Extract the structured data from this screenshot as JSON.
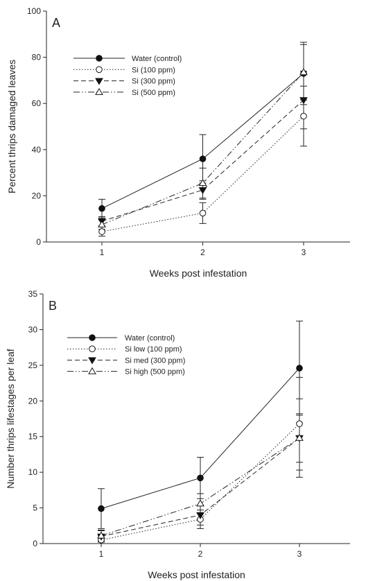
{
  "chart_data": [
    {
      "type": "line",
      "panel_label": "A",
      "xlabel": "Weeks post infestation",
      "ylabel": "Percent thrips damaged leaves",
      "x": [
        1,
        2,
        3
      ],
      "xticks": [
        1,
        2,
        3
      ],
      "ylim": [
        0,
        100
      ],
      "yticks": [
        0,
        20,
        40,
        60,
        80,
        100
      ],
      "legend_position": "top-left",
      "series": [
        {
          "name": "Water (control)",
          "values": [
            14.5,
            36,
            73
          ],
          "errors": [
            4,
            10.5,
            13.5
          ],
          "marker": "filled-circle",
          "dash": "solid"
        },
        {
          "name": "Si (100 ppm)",
          "values": [
            4.5,
            12.5,
            54.5
          ],
          "errors": [
            2,
            4.5,
            13
          ],
          "marker": "open-circle",
          "dash": "dotted"
        },
        {
          "name": "Si (300 ppm)",
          "values": [
            9,
            22.5,
            61.5
          ],
          "errors": [
            2,
            4,
            12.5
          ],
          "marker": "filled-triangle-down",
          "dash": "dashed"
        },
        {
          "name": "Si (500 ppm)",
          "values": [
            7.5,
            25.5,
            73.5
          ],
          "errors": [
            2,
            6.5,
            12
          ],
          "marker": "open-triangle-up",
          "dash": "dash-dot-dot"
        }
      ]
    },
    {
      "type": "line",
      "panel_label": "B",
      "xlabel": "Weeks post infestation",
      "ylabel": "Number thrips lifestages per leaf",
      "x": [
        1,
        2,
        3
      ],
      "xticks": [
        1,
        2,
        3
      ],
      "ylim": [
        0,
        35
      ],
      "yticks": [
        0,
        5,
        10,
        15,
        20,
        25,
        30,
        35
      ],
      "legend_position": "top-left",
      "series": [
        {
          "name": "Water (control)",
          "values": [
            4.9,
            9.2,
            24.6
          ],
          "errors": [
            2.8,
            2.9,
            6.6
          ],
          "marker": "filled-circle",
          "dash": "solid"
        },
        {
          "name": "Si low (100 ppm)",
          "values": [
            0.5,
            3.4,
            16.8
          ],
          "errors": [
            0.6,
            1.3,
            6.5
          ],
          "marker": "open-circle",
          "dash": "dotted"
        },
        {
          "name": "Si med (300 ppm)",
          "values": [
            1,
            4,
            14.8
          ],
          "errors": [
            0.8,
            1.4,
            3.4
          ],
          "marker": "filled-triangle-down",
          "dash": "dashed"
        },
        {
          "name": "Si high (500 ppm)",
          "values": [
            1.1,
            5.6,
            14.8
          ],
          "errors": [
            0.8,
            1.4,
            5.5
          ],
          "marker": "open-triangle-up",
          "dash": "dash-dot-dot"
        }
      ]
    }
  ]
}
